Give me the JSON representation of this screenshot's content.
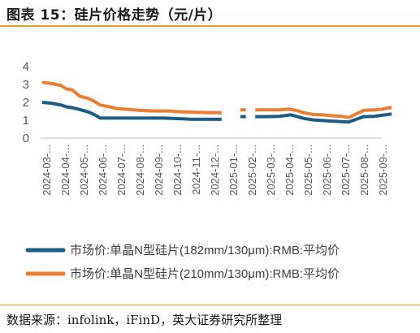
{
  "header": {
    "title": "图表 15：硅片价格走势（元/片）"
  },
  "footer": {
    "source": "数据来源：infolink，iFinD，英大证券研究所整理"
  },
  "colors": {
    "accent_rule": "#e8a21f",
    "series_182": "#1a5c86",
    "series_210": "#ed7d31"
  },
  "chart_data": {
    "type": "line",
    "ylim": [
      0,
      4
    ],
    "yticks": [
      "0",
      "1",
      "2",
      "3",
      "4"
    ],
    "x_labels": [
      "2024-03-...",
      "2024-04-...",
      "2024-05-...",
      "2024-06-...",
      "2024-07-...",
      "2024-08-...",
      "2024-09-...",
      "2024-10-...",
      "2024-11-...",
      "2024-12-...",
      "2025-01-...",
      "2025-02-...",
      "2025-03-...",
      "2025-04-...",
      "2025-05-...",
      "2025-06-...",
      "2025-07-...",
      "2025-08-...",
      "2025-09-..."
    ],
    "grid": false,
    "legend_position": "bottom",
    "series": [
      {
        "name": "市场价:单晶N型硅片(182mm/130μm):RMB:平均价",
        "color": "#1a5c86",
        "points": [
          [
            0,
            2.0
          ],
          [
            0.5,
            1.95
          ],
          [
            1.0,
            1.85
          ],
          [
            1.3,
            1.75
          ],
          [
            1.6,
            1.7
          ],
          [
            2.0,
            1.6
          ],
          [
            2.5,
            1.45
          ],
          [
            2.9,
            1.25
          ],
          [
            3.1,
            1.12
          ],
          [
            3.6,
            1.12
          ],
          [
            4.5,
            1.12
          ],
          [
            5.5,
            1.12
          ],
          [
            6.5,
            1.12
          ],
          [
            7.5,
            1.08
          ],
          [
            8.0,
            1.05
          ],
          [
            9.0,
            1.05
          ],
          [
            9.6,
            1.05
          ],
          null,
          [
            10.6,
            1.2
          ],
          [
            10.9,
            1.2
          ],
          null,
          [
            11.4,
            1.2
          ],
          [
            12.0,
            1.2
          ],
          [
            12.7,
            1.22
          ],
          [
            13.3,
            1.3
          ],
          [
            13.6,
            1.22
          ],
          [
            14.0,
            1.1
          ],
          [
            14.5,
            1.02
          ],
          [
            15.0,
            0.98
          ],
          [
            15.5,
            0.95
          ],
          [
            16.0,
            0.92
          ],
          [
            16.4,
            0.9
          ],
          [
            16.8,
            1.05
          ],
          [
            17.2,
            1.2
          ],
          [
            17.8,
            1.22
          ],
          [
            18.2,
            1.28
          ],
          [
            18.7,
            1.35
          ]
        ]
      },
      {
        "name": "市场价:单晶N型硅片(210mm/130μm):RMB:平均价",
        "color": "#ed7d31",
        "points": [
          [
            0,
            3.12
          ],
          [
            0.5,
            3.05
          ],
          [
            1.0,
            2.95
          ],
          [
            1.3,
            2.75
          ],
          [
            1.6,
            2.7
          ],
          [
            2.0,
            2.35
          ],
          [
            2.5,
            2.2
          ],
          [
            2.8,
            2.05
          ],
          [
            3.1,
            1.85
          ],
          [
            3.6,
            1.75
          ],
          [
            4.0,
            1.65
          ],
          [
            4.6,
            1.6
          ],
          [
            5.2,
            1.55
          ],
          [
            6.0,
            1.52
          ],
          [
            6.8,
            1.52
          ],
          [
            7.2,
            1.48
          ],
          [
            8.0,
            1.45
          ],
          [
            9.0,
            1.42
          ],
          [
            9.6,
            1.42
          ],
          null,
          [
            10.6,
            1.58
          ],
          [
            10.9,
            1.58
          ],
          null,
          [
            11.4,
            1.58
          ],
          [
            12.0,
            1.58
          ],
          [
            12.7,
            1.58
          ],
          [
            13.2,
            1.62
          ],
          [
            13.6,
            1.55
          ],
          [
            14.0,
            1.42
          ],
          [
            14.5,
            1.32
          ],
          [
            15.0,
            1.3
          ],
          [
            15.5,
            1.25
          ],
          [
            16.0,
            1.22
          ],
          [
            16.4,
            1.15
          ],
          [
            16.8,
            1.35
          ],
          [
            17.2,
            1.55
          ],
          [
            17.8,
            1.58
          ],
          [
            18.2,
            1.62
          ],
          [
            18.7,
            1.72
          ]
        ]
      }
    ]
  }
}
